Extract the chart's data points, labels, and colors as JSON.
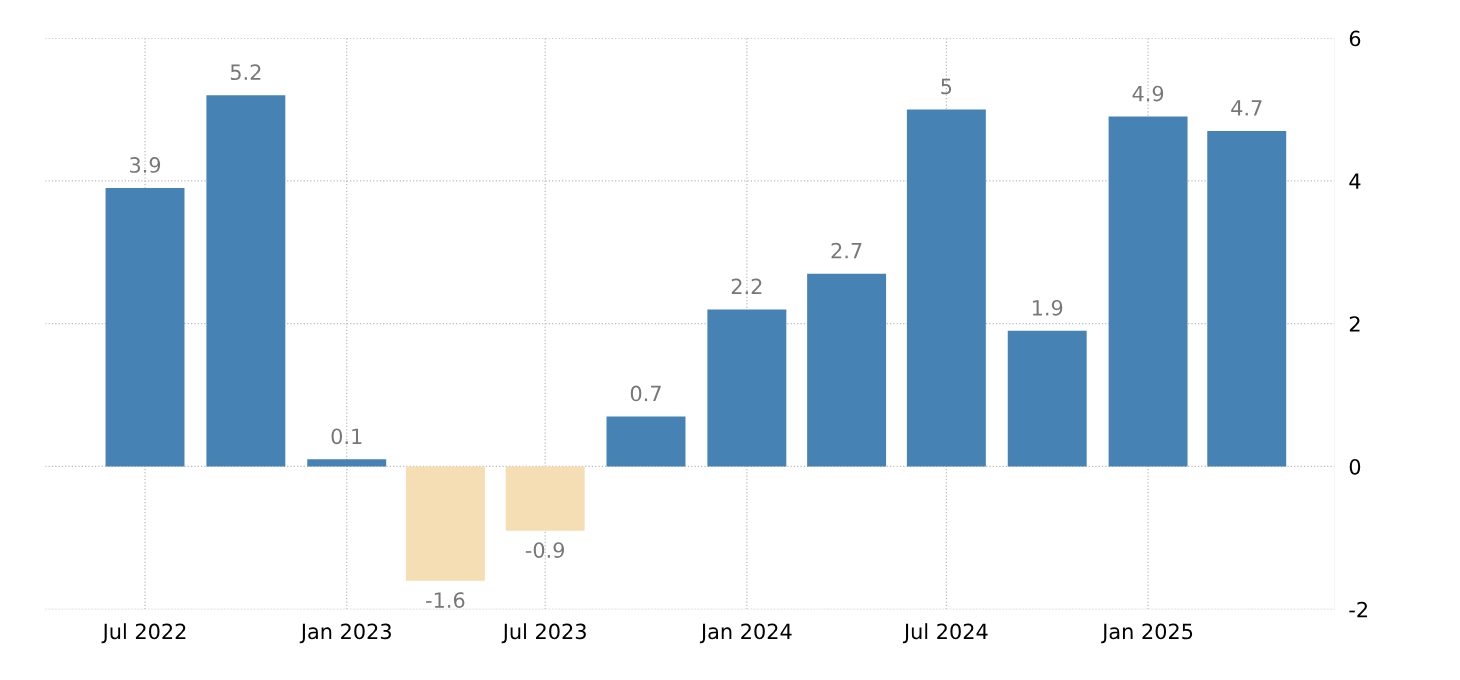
{
  "chart_data": {
    "type": "bar",
    "x": [
      "2022-07",
      "2022-10",
      "2023-01",
      "2023-04",
      "2023-07",
      "2023-10",
      "2024-01",
      "2024-04",
      "2024-07",
      "2024-10",
      "2025-01",
      "2025-04"
    ],
    "values": [
      3.9,
      5.2,
      0.1,
      -1.6,
      -0.9,
      0.7,
      2.2,
      2.7,
      5,
      1.9,
      4.9,
      4.7
    ],
    "colors": [
      "#4682b4",
      "#4682b4",
      "#4682b4",
      "#f5deb3",
      "#f5deb3",
      "#4682b4",
      "#4682b4",
      "#4682b4",
      "#4682b4",
      "#4682b4",
      "#4682b4",
      "#4682b4"
    ],
    "data_labels": true,
    "xlim": [
      "2022-04-01",
      "2025-06-20"
    ],
    "xticks": [
      {
        "value": "2022-07",
        "label": "Jul 2022"
      },
      {
        "value": "2023-01",
        "label": "Jan 2023"
      },
      {
        "value": "2023-07",
        "label": "Jul 2023"
      },
      {
        "value": "2024-01",
        "label": "Jan 2024"
      },
      {
        "value": "2024-07",
        "label": "Jul 2024"
      },
      {
        "value": "2025-01",
        "label": "Jan 2025"
      }
    ],
    "ylim": [
      -2,
      6
    ],
    "yticks": [
      -2,
      0,
      2,
      4,
      6
    ],
    "grid": true
  }
}
